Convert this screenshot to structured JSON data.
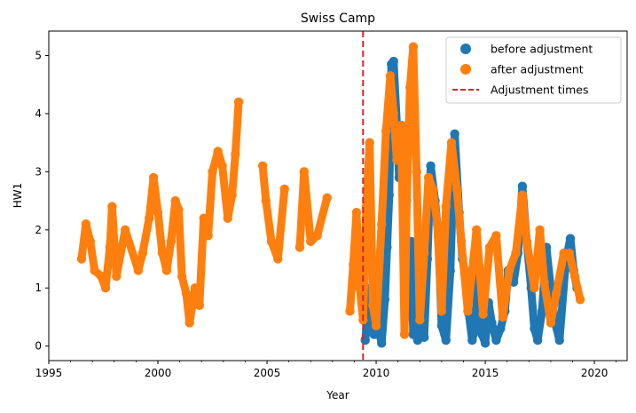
{
  "chart_data": {
    "type": "scatter",
    "title": "Swiss Camp",
    "xlabel": "Year",
    "ylabel": "HW1",
    "xlim": [
      1995,
      2021.5
    ],
    "ylim": [
      -0.25,
      5.42
    ],
    "xticks": [
      1995,
      2000,
      2005,
      2010,
      2015,
      2020
    ],
    "xtick_labels": [
      "1995",
      "2000",
      "2005",
      "2010",
      "2015",
      "2020"
    ],
    "yticks": [
      0,
      1,
      2,
      3,
      4,
      5
    ],
    "ytick_labels": [
      "0",
      "1",
      "2",
      "3",
      "4",
      "5"
    ],
    "grid": false,
    "legend_position": "top-right",
    "colors": {
      "before": "#1f77b4",
      "after": "#ff7f0e",
      "adjustment": "#d62728"
    },
    "legend": [
      {
        "label": "before adjustment",
        "marker": "circle",
        "color": "#1f77b4"
      },
      {
        "label": "after adjustment",
        "marker": "circle",
        "color": "#ff7f0e"
      },
      {
        "label": "Adjustment times",
        "marker": "dashed-line",
        "color": "#d62728"
      }
    ],
    "vlines": [
      {
        "x": 2009.4,
        "name": "Adjustment times"
      }
    ],
    "series": [
      {
        "name": "before adjustment",
        "points": [
          [
            2009.5,
            0.1
          ],
          [
            2009.6,
            0.5
          ],
          [
            2009.75,
            1.0
          ],
          [
            2009.9,
            0.2
          ],
          [
            2010.0,
            1.1
          ],
          [
            2010.1,
            0.3
          ],
          [
            2010.25,
            0.05
          ],
          [
            2010.4,
            0.8
          ],
          [
            2010.5,
            1.7
          ],
          [
            2010.6,
            2.6
          ],
          [
            2010.7,
            4.85
          ],
          [
            2010.8,
            4.9
          ],
          [
            2010.95,
            3.8
          ],
          [
            2011.05,
            2.9
          ],
          [
            2011.15,
            3.5
          ],
          [
            2011.25,
            2.4
          ],
          [
            2011.4,
            0.5
          ],
          [
            2011.5,
            0.9
          ],
          [
            2011.6,
            1.8
          ],
          [
            2011.7,
            0.2
          ],
          [
            2011.8,
            1.2
          ],
          [
            2011.9,
            0.1
          ],
          [
            2012.05,
            0.6
          ],
          [
            2012.2,
            0.15
          ],
          [
            2012.35,
            1.5
          ],
          [
            2012.5,
            3.1
          ],
          [
            2012.7,
            2.5
          ],
          [
            2012.85,
            1.9
          ],
          [
            2013.0,
            0.35
          ],
          [
            2013.2,
            0.1
          ],
          [
            2013.4,
            1.3
          ],
          [
            2013.6,
            3.65
          ],
          [
            2013.8,
            2.3
          ],
          [
            2013.95,
            1.5
          ],
          [
            2014.1,
            1.2
          ],
          [
            2014.25,
            0.55
          ],
          [
            2014.4,
            0.1
          ],
          [
            2014.55,
            0.35
          ],
          [
            2014.7,
            1.4
          ],
          [
            2014.85,
            0.2
          ],
          [
            2015.0,
            0.05
          ],
          [
            2015.15,
            0.75
          ],
          [
            2015.3,
            0.4
          ],
          [
            2015.5,
            0.1
          ],
          [
            2015.7,
            0.3
          ],
          [
            2015.9,
            0.6
          ],
          [
            2016.05,
            1.3
          ],
          [
            2016.3,
            1.1
          ],
          [
            2016.5,
            1.6
          ],
          [
            2016.7,
            2.75
          ],
          [
            2016.9,
            1.8
          ],
          [
            2017.1,
            1.0
          ],
          [
            2017.25,
            0.3
          ],
          [
            2017.4,
            0.1
          ],
          [
            2017.6,
            0.6
          ],
          [
            2017.8,
            1.7
          ],
          [
            2018.0,
            1.0
          ],
          [
            2018.2,
            0.4
          ],
          [
            2018.4,
            0.1
          ],
          [
            2018.7,
            1.5
          ],
          [
            2018.9,
            1.85
          ],
          [
            2019.05,
            1.3
          ],
          [
            2019.2,
            1.0
          ]
        ]
      },
      {
        "name": "after adjustment",
        "points": [
          [
            1996.5,
            1.5
          ],
          [
            1996.7,
            2.1
          ],
          [
            1996.9,
            1.8
          ],
          [
            1997.1,
            1.3
          ],
          [
            1997.4,
            1.2
          ],
          [
            1997.6,
            1.0
          ],
          [
            1997.8,
            1.7
          ],
          [
            1997.9,
            2.4
          ],
          [
            1998.1,
            1.2
          ],
          [
            1998.5,
            2.0
          ],
          [
            1999.1,
            1.3
          ],
          [
            1999.3,
            1.6
          ],
          [
            1999.6,
            2.2
          ],
          [
            1999.8,
            2.9
          ],
          [
            2000.0,
            2.3
          ],
          [
            2000.2,
            1.6
          ],
          [
            2000.4,
            1.3
          ],
          [
            2000.6,
            1.8
          ],
          [
            2000.8,
            2.5
          ],
          [
            2000.95,
            2.35
          ],
          [
            2001.1,
            1.2
          ],
          [
            2001.3,
            0.9
          ],
          [
            2001.45,
            0.4
          ],
          [
            2001.7,
            1.0
          ],
          [
            2001.9,
            0.7
          ],
          [
            2002.1,
            2.2
          ],
          [
            2002.3,
            1.9
          ],
          [
            2002.5,
            3.0
          ],
          [
            2002.75,
            3.35
          ],
          [
            2002.95,
            3.1
          ],
          [
            2003.2,
            2.2
          ],
          [
            2003.4,
            2.6
          ],
          [
            2003.55,
            3.3
          ],
          [
            2003.7,
            4.2
          ],
          [
            2004.8,
            3.1
          ],
          [
            2004.95,
            2.5
          ],
          [
            2005.2,
            1.8
          ],
          [
            2005.5,
            1.5
          ],
          [
            2005.8,
            2.7
          ],
          [
            2006.5,
            1.7
          ],
          [
            2006.7,
            3.0
          ],
          [
            2007.0,
            1.8
          ],
          [
            2007.3,
            1.9
          ],
          [
            2007.75,
            2.55
          ],
          [
            2008.8,
            0.6
          ],
          [
            2008.95,
            1.4
          ],
          [
            2009.1,
            2.3
          ],
          [
            2009.25,
            1.0
          ],
          [
            2009.4,
            0.45
          ],
          [
            2009.55,
            2.4
          ],
          [
            2009.7,
            3.5
          ],
          [
            2009.85,
            0.7
          ],
          [
            2010.0,
            0.35
          ],
          [
            2010.25,
            2.1
          ],
          [
            2010.45,
            3.7
          ],
          [
            2010.65,
            4.65
          ],
          [
            2010.8,
            4.0
          ],
          [
            2010.95,
            3.2
          ],
          [
            2011.15,
            3.8
          ],
          [
            2011.3,
            0.2
          ],
          [
            2011.4,
            2.5
          ],
          [
            2011.55,
            4.45
          ],
          [
            2011.7,
            5.15
          ],
          [
            2011.85,
            3.0
          ],
          [
            2012.0,
            0.45
          ],
          [
            2012.2,
            1.6
          ],
          [
            2012.4,
            2.9
          ],
          [
            2012.6,
            2.7
          ],
          [
            2012.8,
            2.1
          ],
          [
            2013.0,
            0.6
          ],
          [
            2013.2,
            2.4
          ],
          [
            2013.45,
            3.5
          ],
          [
            2013.7,
            2.7
          ],
          [
            2013.9,
            1.8
          ],
          [
            2014.2,
            0.6
          ],
          [
            2014.4,
            1.3
          ],
          [
            2014.6,
            2.0
          ],
          [
            2014.9,
            0.55
          ],
          [
            2015.2,
            1.7
          ],
          [
            2015.5,
            1.9
          ],
          [
            2015.8,
            0.5
          ],
          [
            2016.1,
            1.3
          ],
          [
            2016.4,
            1.6
          ],
          [
            2016.7,
            2.6
          ],
          [
            2016.9,
            1.8
          ],
          [
            2017.25,
            1.0
          ],
          [
            2017.5,
            2.0
          ],
          [
            2017.7,
            1.1
          ],
          [
            2018.0,
            0.4
          ],
          [
            2018.25,
            0.9
          ],
          [
            2018.6,
            1.6
          ],
          [
            2018.85,
            1.6
          ],
          [
            2019.1,
            1.2
          ],
          [
            2019.35,
            0.8
          ]
        ]
      }
    ]
  }
}
